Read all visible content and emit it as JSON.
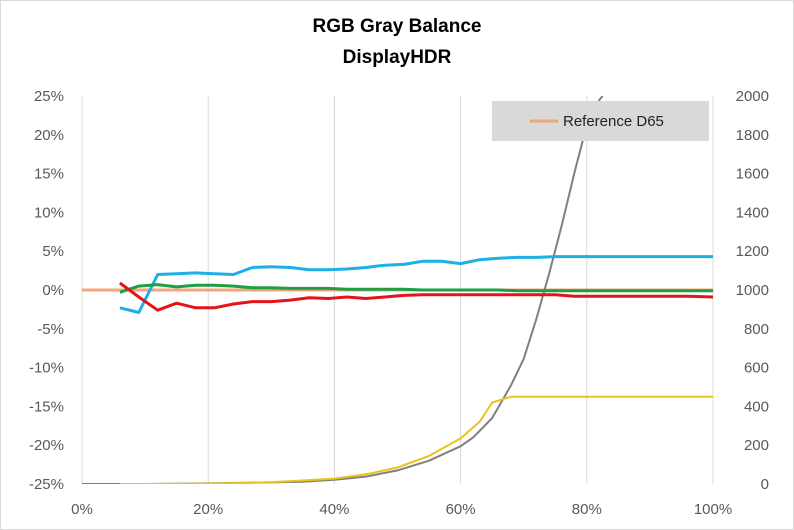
{
  "chart_data": {
    "type": "line",
    "title": "RGB Gray Balance",
    "subtitle": "DisplayHDR",
    "xlabel": "",
    "ylabel": "",
    "y2label": "",
    "xlim": [
      0,
      100
    ],
    "ylim": [
      -25,
      25
    ],
    "y2lim": [
      0,
      2000
    ],
    "x_ticks": [
      "0%",
      "20%",
      "40%",
      "60%",
      "80%",
      "100%"
    ],
    "y_ticks": [
      "25%",
      "20%",
      "15%",
      "10%",
      "5%",
      "0%",
      "-5%",
      "-10%",
      "-15%",
      "-20%",
      "-25%"
    ],
    "y2_ticks": [
      "2000",
      "1800",
      "1600",
      "1400",
      "1200",
      "1000",
      "800",
      "600",
      "400",
      "200",
      "0"
    ],
    "grid": "vertical",
    "legend": {
      "position": "top-right",
      "entries": [
        "Reference D65"
      ]
    },
    "colors": {
      "blue": "#1CB0E6",
      "green": "#1E9E45",
      "red": "#E3141B",
      "reference": "#F4A57A",
      "gray": "#808080",
      "yellow": "#E8C51A",
      "legend_bg": "#D9D9D9",
      "grid": "#D9D9D9"
    },
    "series": [
      {
        "key": "blue",
        "axis": "left",
        "x": [
          6,
          9,
          12,
          15,
          18,
          21,
          24,
          27,
          30,
          33,
          36,
          39,
          42,
          45,
          48,
          51,
          54,
          57,
          60,
          63,
          66,
          69,
          72,
          75,
          78,
          81,
          84,
          87,
          90,
          93,
          96,
          100
        ],
        "y": [
          -2.3,
          -2.9,
          2.0,
          2.1,
          2.2,
          2.1,
          2.0,
          2.9,
          3.0,
          2.9,
          2.6,
          2.6,
          2.7,
          2.9,
          3.2,
          3.3,
          3.7,
          3.7,
          3.4,
          3.9,
          4.1,
          4.2,
          4.2,
          4.3,
          4.3,
          4.3,
          4.3,
          4.3,
          4.3,
          4.3,
          4.3,
          4.3
        ]
      },
      {
        "key": "green",
        "axis": "left",
        "x": [
          6,
          9,
          12,
          15,
          18,
          21,
          24,
          27,
          30,
          33,
          36,
          39,
          42,
          45,
          48,
          51,
          54,
          57,
          60,
          63,
          66,
          69,
          72,
          75,
          78,
          81,
          84,
          87,
          90,
          93,
          96,
          100
        ],
        "y": [
          -0.3,
          0.5,
          0.7,
          0.4,
          0.6,
          0.6,
          0.5,
          0.3,
          0.3,
          0.2,
          0.2,
          0.2,
          0.1,
          0.1,
          0.1,
          0.1,
          0.0,
          0.0,
          0.0,
          0.0,
          0.0,
          -0.1,
          -0.1,
          -0.1,
          -0.1,
          -0.1,
          -0.1,
          -0.1,
          -0.1,
          -0.1,
          -0.1,
          -0.1
        ]
      },
      {
        "key": "red",
        "axis": "left",
        "x": [
          6,
          9,
          12,
          15,
          18,
          21,
          24,
          27,
          30,
          33,
          36,
          39,
          42,
          45,
          48,
          51,
          54,
          57,
          60,
          63,
          66,
          69,
          72,
          75,
          78,
          81,
          84,
          87,
          90,
          93,
          96,
          100
        ],
        "y": [
          0.9,
          -0.9,
          -2.6,
          -1.7,
          -2.3,
          -2.3,
          -1.8,
          -1.5,
          -1.5,
          -1.3,
          -1.0,
          -1.1,
          -0.9,
          -1.1,
          -0.9,
          -0.7,
          -0.6,
          -0.6,
          -0.6,
          -0.6,
          -0.6,
          -0.6,
          -0.6,
          -0.6,
          -0.8,
          -0.8,
          -0.8,
          -0.8,
          -0.8,
          -0.8,
          -0.8,
          -0.9
        ]
      },
      {
        "key": "reference",
        "name": "Reference D65",
        "axis": "left",
        "x": [
          0,
          100
        ],
        "y": [
          0,
          0
        ]
      },
      {
        "key": "gray",
        "axis": "right",
        "x": [
          0,
          10,
          20,
          30,
          35,
          40,
          45,
          50,
          55,
          60,
          62,
          65,
          68,
          70,
          72,
          74,
          76,
          78,
          80,
          82,
          82.5
        ],
        "y": [
          0,
          0,
          3,
          8,
          12,
          22,
          38,
          70,
          120,
          195,
          240,
          340,
          510,
          645,
          850,
          1080,
          1330,
          1600,
          1850,
          1980,
          2000
        ]
      },
      {
        "key": "yellow",
        "axis": "right",
        "x": [
          6,
          10,
          20,
          25,
          30,
          35,
          40,
          45,
          50,
          55,
          60,
          63,
          65,
          68,
          70,
          80,
          90,
          100
        ],
        "y": [
          0,
          0,
          2,
          5,
          10,
          18,
          28,
          50,
          85,
          145,
          235,
          320,
          420,
          450,
          450,
          450,
          450,
          450
        ]
      }
    ]
  }
}
